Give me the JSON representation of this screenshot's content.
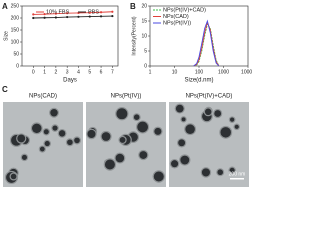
{
  "chart_data": [
    {
      "type": "line",
      "panel_label": "A",
      "xlabel": "Days",
      "ylabel": "Size",
      "x": [
        0,
        1,
        2,
        3,
        4,
        5,
        6,
        7
      ],
      "xlim": [
        -1,
        7.5
      ],
      "xticks": [
        0,
        1,
        2,
        3,
        4,
        5,
        6,
        7
      ],
      "ylim": [
        0,
        250
      ],
      "yticks": [
        0,
        50,
        100,
        150,
        200,
        250
      ],
      "legend": "top",
      "series": [
        {
          "name": "10% FBS",
          "color": "#e0403a",
          "values": [
            215,
            216,
            218,
            220,
            221,
            222,
            224,
            226
          ]
        },
        {
          "name": "PBS",
          "color": "#222222",
          "values": [
            200,
            201,
            202,
            204,
            205,
            206,
            207,
            208
          ]
        }
      ]
    },
    {
      "type": "line",
      "panel_label": "B",
      "xlabel": "Size(d.nm)",
      "ylabel": "Intensity(Percent)",
      "xscale": "log",
      "x": [
        60,
        80,
        100,
        130,
        170,
        220,
        290,
        380,
        500,
        650
      ],
      "xlim": [
        1,
        10000
      ],
      "xticks": [
        1,
        10,
        100,
        1000,
        10000
      ],
      "ylim": [
        0,
        20
      ],
      "yticks": [
        0,
        5,
        10,
        15,
        20
      ],
      "legend": "upper left",
      "series": [
        {
          "name": "NPs(Pt(IV)+CAD)",
          "color": "#3cbf4a",
          "dashed": true,
          "values": [
            0,
            0.3,
            1.5,
            5,
            10,
            14,
            12.5,
            7,
            2,
            0
          ]
        },
        {
          "name": "NPs(CAD)",
          "color": "#e0403a",
          "values": [
            0,
            0.5,
            2,
            6,
            11,
            14.5,
            12,
            6,
            1.5,
            0
          ]
        },
        {
          "name": "NPs(Pt(IV))",
          "color": "#4a4ae0",
          "values": [
            0,
            0.8,
            3,
            7.5,
            12.5,
            15,
            11,
            5,
            1,
            0
          ]
        }
      ]
    }
  ],
  "images": {
    "panel_label": "C",
    "items": [
      {
        "label": "NPs(CAD)"
      },
      {
        "label": "NPs(Pt(IV))"
      },
      {
        "label": "NPs(Pt(IV)+CAD)"
      }
    ],
    "scale_bar": "200 nm"
  }
}
